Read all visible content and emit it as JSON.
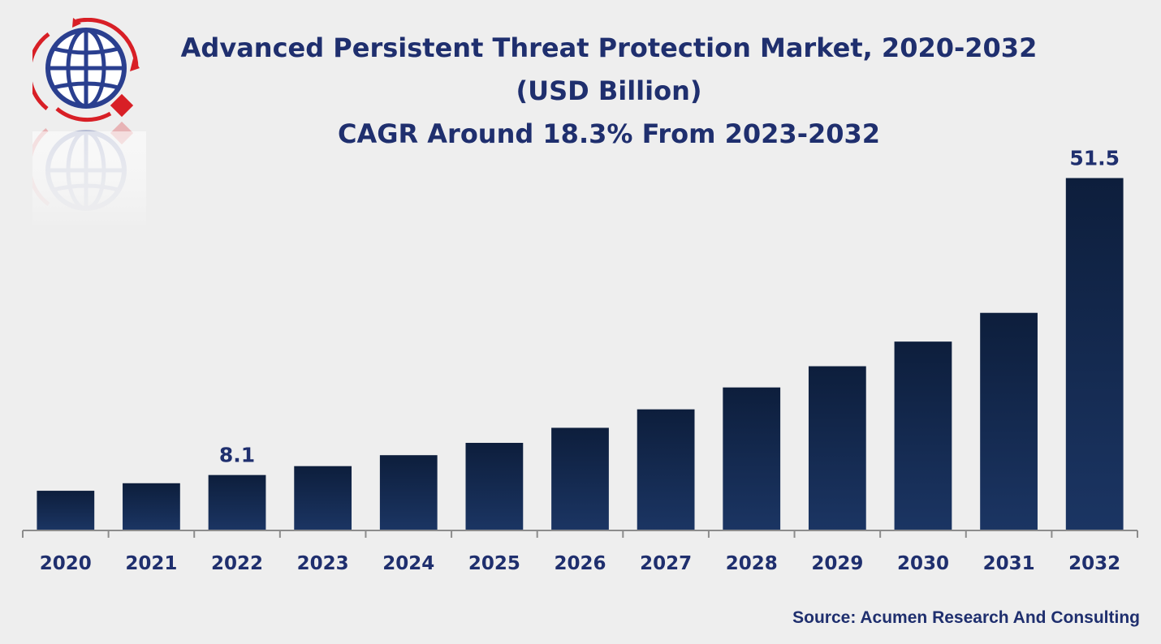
{
  "chart_data": {
    "type": "bar",
    "title": "Advanced Persistent Threat Protection Market, 2020-2032",
    "subtitle": "(USD Billion)",
    "annotation": "CAGR Around 18.3% From 2023-2032",
    "categories": [
      "2020",
      "2021",
      "2022",
      "2023",
      "2024",
      "2025",
      "2026",
      "2027",
      "2028",
      "2029",
      "2030",
      "2031",
      "2032"
    ],
    "values": [
      5.8,
      6.9,
      8.1,
      9.4,
      11.0,
      12.8,
      15.0,
      17.7,
      20.9,
      24.0,
      27.6,
      31.8,
      51.5
    ],
    "data_labels": {
      "2022": "8.1",
      "2032": "51.5"
    },
    "ylim": [
      0,
      55
    ],
    "xlabel": "",
    "ylabel": "",
    "grid": false,
    "legend": "none",
    "bar_color": "#1b3563",
    "bar_color_top": "#0d1e3c"
  },
  "source": "Source: Acumen Research And Consulting",
  "logo": {
    "icon": "globe-icon",
    "colors": {
      "ring": "#d81f26",
      "globe": "#2a3f8f"
    }
  }
}
